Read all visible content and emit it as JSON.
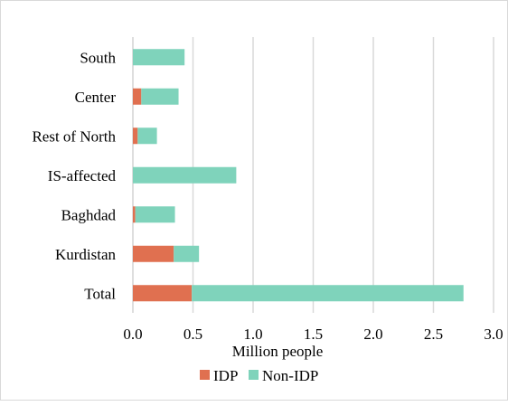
{
  "chart_data": {
    "type": "bar",
    "orientation": "horizontal",
    "stacked": true,
    "categories": [
      "Total",
      "Kurdistan",
      "Baghdad",
      "IS-affected",
      "Rest of North",
      "Center",
      "South"
    ],
    "series": [
      {
        "name": "IDP",
        "color": "#E07050",
        "values": [
          0.49,
          0.34,
          0.02,
          0.0,
          0.04,
          0.07,
          0.0
        ]
      },
      {
        "name": "Non-IDP",
        "color": "#7FD3BB",
        "values": [
          2.26,
          0.21,
          0.33,
          0.86,
          0.16,
          0.31,
          0.43
        ]
      }
    ],
    "xlabel": "Million people",
    "ylabel": "",
    "xlim": [
      0.0,
      3.0
    ],
    "xticks": [
      "0.0",
      "0.5",
      "1.0",
      "1.5",
      "2.0",
      "2.5",
      "3.0"
    ],
    "grid": "vertical",
    "legend": "bottom"
  }
}
